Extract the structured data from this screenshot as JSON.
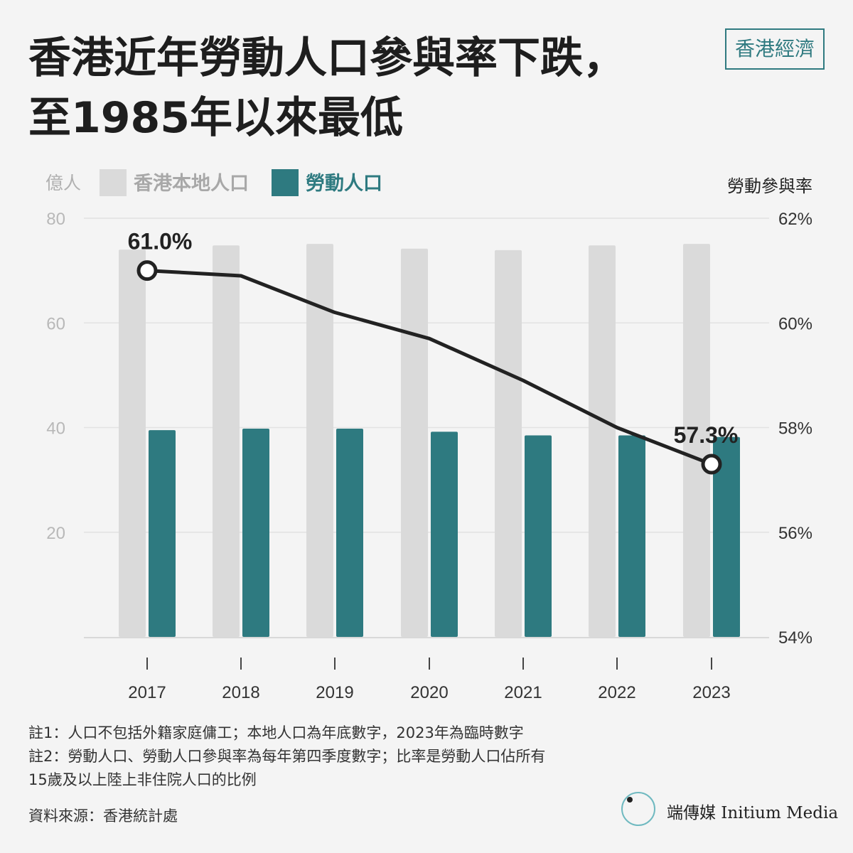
{
  "header": {
    "title_line1": "香港近年勞動人口參與率下跌，",
    "title_line2": "至1985年以來最低",
    "section_tag": "香港經濟"
  },
  "colors": {
    "population_bar": "#dadada",
    "labor_bar": "#2e7a80",
    "rate_line": "#222222",
    "grid": "#e2e2e2",
    "accent": "#2f7a80"
  },
  "chart_data": {
    "type": "bar",
    "categories": [
      "2017",
      "2018",
      "2019",
      "2020",
      "2021",
      "2022",
      "2023"
    ],
    "left_axis": {
      "unit_label": "億人",
      "ylim": [
        0,
        80
      ],
      "ticks": [
        "20",
        "40",
        "60",
        "80"
      ]
    },
    "right_axis": {
      "label": "勞動參與率",
      "ylim": [
        54,
        62
      ],
      "ticks": [
        "54%",
        "56%",
        "58%",
        "60%",
        "62%"
      ]
    },
    "series": [
      {
        "name": "香港本地人口",
        "type": "bar",
        "axis": "left",
        "values": [
          74.0,
          74.8,
          75.1,
          74.2,
          73.9,
          74.8,
          75.1
        ]
      },
      {
        "name": "勞動人口",
        "type": "bar",
        "axis": "left",
        "values": [
          39.5,
          39.8,
          39.8,
          39.2,
          38.5,
          38.5,
          38.2
        ]
      },
      {
        "name": "",
        "type": "line",
        "axis": "right",
        "values": [
          61.0,
          60.9,
          60.2,
          59.7,
          58.9,
          58.0,
          57.3
        ]
      }
    ],
    "annotations": [
      {
        "index": 0,
        "text": "61.0%"
      },
      {
        "index": 6,
        "text": "57.3%"
      }
    ],
    "grid": true,
    "legend_position": "top-left"
  },
  "notes": {
    "note1": "註1：人口不包括外籍家庭傭工；本地人口為年底數字，2023年為臨時數字",
    "note2_line1": "註2：勞動人口、勞動人口參與率為每年第四季度數字；比率是勞動人口佔所有",
    "note2_line2": "15歲及以上陸上非住院人口的比例"
  },
  "source": "資料來源：香港統計處",
  "logo": {
    "mark": "I 端",
    "text": "端傳媒 Initium Media"
  }
}
